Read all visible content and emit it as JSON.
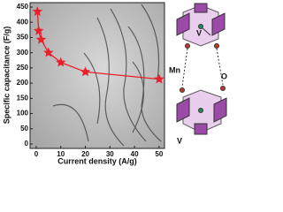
{
  "chart_data": {
    "type": "line",
    "xlabel": "Current density (A/g)",
    "ylabel": "Specific capacitance (F/g)",
    "x": [
      0.5,
      1,
      2,
      5,
      10,
      20,
      50
    ],
    "series": [
      {
        "color": "#e8202a",
        "values": [
          435,
          372,
          343,
          300,
          268,
          237,
          213
        ]
      }
    ],
    "xlim": [
      -2.5,
      52.2
    ],
    "ylim": [
      -14.5,
      464.5
    ],
    "xticks": [
      0,
      10,
      20,
      30,
      40,
      50
    ],
    "yticks": [
      0,
      50,
      100,
      150,
      200,
      250,
      300,
      350,
      400,
      450
    ],
    "annotations": [
      "V",
      "Mn",
      "O",
      "V"
    ]
  }
}
